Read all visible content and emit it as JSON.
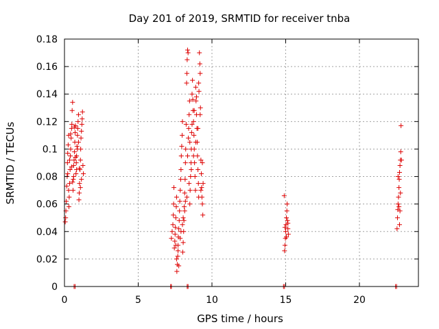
{
  "chart_data": {
    "type": "scatter",
    "title": "Day 201 of 2019, SRMTID for receiver tnba",
    "xlabel": "GPS time / hours",
    "ylabel": "SRMTID / TECUs",
    "xlim": [
      0,
      24
    ],
    "ylim": [
      0,
      0.18
    ],
    "xticks": [
      0,
      5,
      10,
      15,
      20
    ],
    "xtick_labels": [
      "0",
      "5",
      "10",
      "15",
      "20"
    ],
    "yticks": [
      0,
      0.02,
      0.04,
      0.06,
      0.08,
      0.1,
      0.12,
      0.14,
      0.16,
      0.18
    ],
    "ytick_labels": [
      "0",
      "0.02",
      "0.04",
      "0.06",
      "0.08",
      "0.1",
      "0.12",
      "0.14",
      "0.16",
      "0.18"
    ],
    "grid": true,
    "marker": "+",
    "color": "#dd0000",
    "series": [
      {
        "name": "SRMTID",
        "points": [
          [
            0.05,
            0.047
          ],
          [
            0.08,
            0.05
          ],
          [
            0.1,
            0.055
          ],
          [
            0.12,
            0.062
          ],
          [
            0.15,
            0.073
          ],
          [
            0.18,
            0.08
          ],
          [
            0.2,
            0.09
          ],
          [
            0.22,
            0.097
          ],
          [
            0.25,
            0.103
          ],
          [
            0.28,
            0.11
          ],
          [
            0.3,
            0.058
          ],
          [
            0.32,
            0.065
          ],
          [
            0.35,
            0.075
          ],
          [
            0.38,
            0.085
          ],
          [
            0.4,
            0.095
          ],
          [
            0.42,
            0.1
          ],
          [
            0.45,
            0.108
          ],
          [
            0.48,
            0.115
          ],
          [
            0.5,
            0.118
          ],
          [
            0.52,
            0.128
          ],
          [
            0.55,
            0.134
          ],
          [
            0.58,
            0.07
          ],
          [
            0.6,
            0.078
          ],
          [
            0.62,
            0.088
          ],
          [
            0.65,
            0.092
          ],
          [
            0.68,
            0.098
          ],
          [
            0.7,
            0.105
          ],
          [
            0.72,
            0.112
          ],
          [
            0.75,
            0.117
          ],
          [
            0.78,
            0.082
          ],
          [
            0.8,
            0.09
          ],
          [
            0.82,
            0.095
          ],
          [
            0.85,
            0.102
          ],
          [
            0.88,
            0.11
          ],
          [
            0.9,
            0.115
          ],
          [
            0.92,
            0.12
          ],
          [
            0.95,
            0.125
          ],
          [
            0.98,
            0.063
          ],
          [
            1.0,
            0.068
          ],
          [
            1.02,
            0.075
          ],
          [
            1.05,
            0.085
          ],
          [
            1.08,
            0.092
          ],
          [
            1.1,
            0.1
          ],
          [
            1.12,
            0.108
          ],
          [
            1.15,
            0.113
          ],
          [
            1.18,
            0.118
          ],
          [
            1.2,
            0.122
          ],
          [
            1.22,
            0.127
          ],
          [
            1.25,
            0.088
          ],
          [
            1.28,
            0.082
          ],
          [
            0.22,
            0.082
          ],
          [
            0.35,
            0.092
          ],
          [
            0.48,
            0.087
          ],
          [
            0.62,
            0.08
          ],
          [
            0.75,
            0.094
          ],
          [
            0.88,
            0.1
          ],
          [
            1.02,
            0.086
          ],
          [
            1.15,
            0.078
          ],
          [
            0.42,
            0.111
          ],
          [
            0.68,
            0.116
          ],
          [
            0.95,
            0.105
          ],
          [
            0.28,
            0.07
          ],
          [
            0.55,
            0.076
          ],
          [
            0.82,
            0.085
          ],
          [
            1.08,
            0.072
          ],
          [
            7.25,
            0.035
          ],
          [
            7.3,
            0.04
          ],
          [
            7.35,
            0.045
          ],
          [
            7.38,
            0.052
          ],
          [
            7.4,
            0.06
          ],
          [
            7.42,
            0.072
          ],
          [
            7.45,
            0.028
          ],
          [
            7.48,
            0.033
          ],
          [
            7.5,
            0.038
          ],
          [
            7.52,
            0.043
          ],
          [
            7.55,
            0.05
          ],
          [
            7.58,
            0.058
          ],
          [
            7.6,
            0.065
          ],
          [
            7.62,
            0.011
          ],
          [
            7.65,
            0.016
          ],
          [
            7.68,
            0.022
          ],
          [
            7.7,
            0.03
          ],
          [
            7.72,
            0.036
          ],
          [
            7.75,
            0.042
          ],
          [
            7.78,
            0.048
          ],
          [
            7.8,
            0.055
          ],
          [
            7.82,
            0.062
          ],
          [
            7.85,
            0.07
          ],
          [
            7.88,
            0.078
          ],
          [
            7.9,
            0.085
          ],
          [
            7.92,
            0.095
          ],
          [
            7.95,
            0.102
          ],
          [
            7.98,
            0.11
          ],
          [
            8.0,
            0.12
          ],
          [
            8.02,
            0.025
          ],
          [
            8.05,
            0.032
          ],
          [
            8.08,
            0.04
          ],
          [
            8.1,
            0.048
          ],
          [
            8.12,
            0.058
          ],
          [
            8.15,
            0.068
          ],
          [
            8.18,
            0.078
          ],
          [
            8.2,
            0.09
          ],
          [
            8.22,
            0.1
          ],
          [
            8.25,
            0.118
          ],
          [
            8.28,
            0.148
          ],
          [
            8.3,
            0.155
          ],
          [
            8.32,
            0.165
          ],
          [
            8.35,
            0.172
          ],
          [
            8.38,
            0.17
          ],
          [
            8.4,
            0.108
          ],
          [
            8.42,
            0.115
          ],
          [
            8.45,
            0.125
          ],
          [
            8.48,
            0.135
          ],
          [
            8.5,
            0.06
          ],
          [
            8.52,
            0.07
          ],
          [
            8.55,
            0.08
          ],
          [
            8.58,
            0.09
          ],
          [
            8.6,
            0.1
          ],
          [
            8.62,
            0.112
          ],
          [
            8.65,
            0.14
          ],
          [
            8.68,
            0.15
          ],
          [
            8.7,
            0.136
          ],
          [
            8.72,
            0.128
          ],
          [
            8.75,
            0.12
          ],
          [
            8.78,
            0.11
          ],
          [
            8.8,
            0.1
          ],
          [
            8.82,
            0.09
          ],
          [
            8.85,
            0.08
          ],
          [
            8.88,
            0.07
          ],
          [
            8.9,
            0.145
          ],
          [
            8.92,
            0.135
          ],
          [
            8.95,
            0.125
          ],
          [
            8.98,
            0.115
          ],
          [
            9.0,
            0.105
          ],
          [
            9.02,
            0.095
          ],
          [
            9.05,
            0.085
          ],
          [
            9.08,
            0.075
          ],
          [
            9.1,
            0.065
          ],
          [
            9.12,
            0.142
          ],
          [
            9.15,
            0.17
          ],
          [
            9.18,
            0.162
          ],
          [
            9.2,
            0.155
          ],
          [
            9.22,
            0.13
          ],
          [
            9.25,
            0.092
          ],
          [
            9.28,
            0.082
          ],
          [
            9.3,
            0.072
          ],
          [
            9.32,
            0.065
          ],
          [
            9.35,
            0.06
          ],
          [
            9.38,
            0.052
          ],
          [
            9.4,
            0.075
          ],
          [
            7.55,
            0.03
          ],
          [
            7.7,
            0.026
          ],
          [
            7.85,
            0.035
          ],
          [
            8.0,
            0.045
          ],
          [
            8.15,
            0.055
          ],
          [
            8.3,
            0.065
          ],
          [
            8.45,
            0.075
          ],
          [
            8.6,
            0.085
          ],
          [
            8.75,
            0.095
          ],
          [
            8.9,
            0.105
          ],
          [
            9.05,
            0.115
          ],
          [
            9.2,
            0.125
          ],
          [
            7.6,
            0.02
          ],
          [
            7.75,
            0.015
          ],
          [
            7.9,
            0.04
          ],
          [
            8.05,
            0.05
          ],
          [
            8.2,
            0.062
          ],
          [
            8.35,
            0.095
          ],
          [
            8.5,
            0.105
          ],
          [
            8.65,
            0.118
          ],
          [
            8.8,
            0.128
          ],
          [
            8.95,
            0.138
          ],
          [
            9.1,
            0.148
          ],
          [
            9.25,
            0.07
          ],
          [
            9.35,
            0.09
          ],
          [
            14.9,
            0.066
          ],
          [
            14.92,
            0.026
          ],
          [
            14.95,
            0.03
          ],
          [
            14.98,
            0.035
          ],
          [
            15.0,
            0.04
          ],
          [
            15.02,
            0.045
          ],
          [
            15.05,
            0.05
          ],
          [
            15.08,
            0.055
          ],
          [
            15.1,
            0.06
          ],
          [
            15.12,
            0.048
          ],
          [
            15.15,
            0.042
          ],
          [
            15.18,
            0.038
          ],
          [
            14.95,
            0.043
          ],
          [
            15.05,
            0.036
          ],
          [
            15.15,
            0.046
          ],
          [
            22.55,
            0.042
          ],
          [
            22.58,
            0.05
          ],
          [
            22.6,
            0.056
          ],
          [
            22.62,
            0.06
          ],
          [
            22.65,
            0.065
          ],
          [
            22.68,
            0.072
          ],
          [
            22.7,
            0.078
          ],
          [
            22.72,
            0.083
          ],
          [
            22.75,
            0.088
          ],
          [
            22.78,
            0.092
          ],
          [
            22.8,
            0.098
          ],
          [
            22.82,
            0.117
          ],
          [
            22.72,
            0.045
          ],
          [
            22.68,
            0.058
          ],
          [
            22.78,
            0.068
          ],
          [
            22.62,
            0.08
          ],
          [
            22.85,
            0.092
          ],
          [
            22.75,
            0.055
          ],
          [
            0.65,
            0.0
          ],
          [
            0.72,
            0.0
          ],
          [
            7.2,
            0.0
          ],
          [
            7.25,
            0.0
          ],
          [
            8.32,
            0.0
          ],
          [
            8.38,
            0.0
          ],
          [
            14.85,
            0.0
          ],
          [
            14.92,
            0.0
          ],
          [
            22.45,
            0.0
          ],
          [
            22.52,
            0.0
          ]
        ]
      }
    ]
  }
}
